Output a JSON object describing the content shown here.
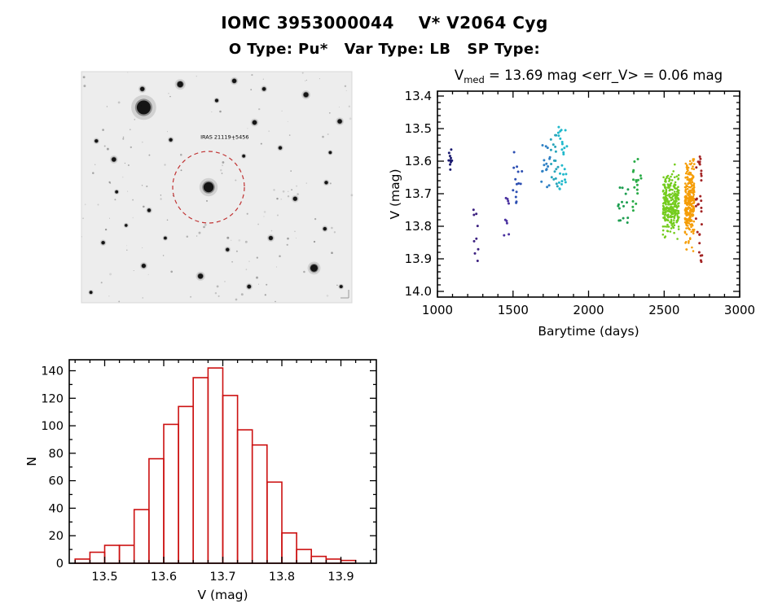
{
  "header": {
    "title": "IOMC 3953000044    V* V2064 Cyg",
    "subtitle": "O Type: Pu*   Var Type: LB   SP Type:"
  },
  "finding_chart": {
    "label": "IRAS 21119+5456",
    "background": "#ededed",
    "circle_color": "#c03333",
    "label_color": "#b53030",
    "seed": 7,
    "noise_count": 150,
    "stars": [
      [
        0.23,
        0.155,
        8.5
      ],
      [
        0.225,
        0.075,
        2.6
      ],
      [
        0.365,
        0.055,
        3.6
      ],
      [
        0.5,
        0.125,
        2.0
      ],
      [
        0.565,
        0.04,
        2.6
      ],
      [
        0.675,
        0.075,
        2.2
      ],
      [
        0.83,
        0.1,
        3.0
      ],
      [
        0.955,
        0.215,
        2.7
      ],
      [
        0.64,
        0.22,
        2.7
      ],
      [
        0.055,
        0.3,
        2.1
      ],
      [
        0.33,
        0.295,
        2.1
      ],
      [
        0.12,
        0.38,
        2.7
      ],
      [
        0.6,
        0.365,
        1.8
      ],
      [
        0.735,
        0.33,
        2.1
      ],
      [
        0.92,
        0.35,
        1.8
      ],
      [
        0.47,
        0.5,
        6.2
      ],
      [
        0.13,
        0.52,
        1.8
      ],
      [
        0.25,
        0.6,
        2.1
      ],
      [
        0.79,
        0.55,
        2.5
      ],
      [
        0.905,
        0.48,
        2.1
      ],
      [
        0.08,
        0.74,
        2.1
      ],
      [
        0.23,
        0.84,
        2.5
      ],
      [
        0.44,
        0.885,
        3.1
      ],
      [
        0.54,
        0.77,
        2.1
      ],
      [
        0.7,
        0.72,
        2.5
      ],
      [
        0.86,
        0.85,
        4.4
      ],
      [
        0.9,
        0.68,
        2.1
      ],
      [
        0.96,
        0.93,
        1.9
      ],
      [
        0.035,
        0.955,
        1.8
      ],
      [
        0.62,
        0.93,
        2.3
      ],
      [
        0.31,
        0.72,
        1.8
      ],
      [
        0.165,
        0.665,
        1.7
      ]
    ]
  },
  "chart_data": [
    {
      "type": "scatter",
      "name": "lightcurve",
      "title_v": "V",
      "title_sub": "med",
      "title_rest": " = 13.69 mag  <err_V> = 0.06 mag",
      "xlabel": "Barytime (days)",
      "ylabel": "V (mag)",
      "xlim": [
        1000,
        3000
      ],
      "ylim": [
        13.385,
        14.0175
      ],
      "y_inverted_magnitude_axis": true,
      "x_ticks": [
        {
          "v": 1000,
          "label": "1000"
        },
        {
          "v": 1500,
          "label": "1500"
        },
        {
          "v": 2000,
          "label": "2000"
        },
        {
          "v": 2500,
          "label": "2500"
        },
        {
          "v": 3000,
          "label": "3000"
        }
      ],
      "y_ticks": [
        {
          "v": 13.4,
          "label": "13.4"
        },
        {
          "v": 13.5,
          "label": "13.5"
        },
        {
          "v": 13.6,
          "label": "13.6"
        },
        {
          "v": 13.7,
          "label": "13.7"
        },
        {
          "v": 13.8,
          "label": "13.8"
        },
        {
          "v": 13.9,
          "label": "13.9"
        },
        {
          "v": 14.0,
          "label": "14.0"
        }
      ],
      "seed": 11,
      "clusters": [
        {
          "x0": 1072,
          "x1": 1100,
          "v0": 13.55,
          "v1": 13.64,
          "n": 10,
          "color": "#1b1b70",
          "dense": false
        },
        {
          "x0": 1225,
          "x1": 1280,
          "v0": 13.74,
          "v1": 13.91,
          "n": 9,
          "color": "#3c2080",
          "dense": false
        },
        {
          "x0": 1438,
          "x1": 1478,
          "v0": 13.71,
          "v1": 13.85,
          "n": 9,
          "color": "#4b32a0",
          "dense": false
        },
        {
          "x0": 1497,
          "x1": 1560,
          "v0": 13.55,
          "v1": 13.74,
          "n": 14,
          "color": "#2d4fb2",
          "dense": false
        },
        {
          "x0": 1688,
          "x1": 1746,
          "v0": 13.54,
          "v1": 13.68,
          "n": 16,
          "color": "#2f80c4",
          "dense": false
        },
        {
          "x0": 1748,
          "x1": 1798,
          "v0": 13.52,
          "v1": 13.68,
          "n": 18,
          "color": "#28a4ba",
          "dense": false
        },
        {
          "x0": 1800,
          "x1": 1858,
          "v0": 13.48,
          "v1": 13.73,
          "n": 26,
          "color": "#20b8cb",
          "dense": false
        },
        {
          "x0": 2195,
          "x1": 2262,
          "v0": 13.67,
          "v1": 13.79,
          "n": 15,
          "color": "#1d9e50",
          "dense": false
        },
        {
          "x0": 2288,
          "x1": 2348,
          "v0": 13.59,
          "v1": 13.77,
          "n": 18,
          "color": "#28ab46",
          "dense": false
        },
        {
          "x0": 2492,
          "x1": 2598,
          "v0": 13.58,
          "v1": 13.88,
          "n": 280,
          "color": "#74cc1e",
          "dense": true
        },
        {
          "x0": 2638,
          "x1": 2700,
          "v0": 13.52,
          "v1": 13.93,
          "n": 280,
          "color": "#f59d06",
          "dense": true
        },
        {
          "x0": 2705,
          "x1": 2752,
          "v0": 13.56,
          "v1": 13.91,
          "n": 32,
          "color": "#a32424",
          "dense": false
        }
      ]
    },
    {
      "type": "histogram",
      "name": "v-distribution",
      "xlabel": "V (mag)",
      "ylabel": "N",
      "xlim": [
        13.44,
        13.96
      ],
      "ylim": [
        0,
        148
      ],
      "bin_start": 13.45,
      "bin_width": 0.025,
      "values": [
        3,
        8,
        13,
        13,
        39,
        76,
        101,
        114,
        135,
        142,
        122,
        97,
        86,
        59,
        22,
        10,
        5,
        3,
        2
      ],
      "x_ticks": [
        {
          "v": 13.5,
          "label": "13.5"
        },
        {
          "v": 13.6,
          "label": "13.6"
        },
        {
          "v": 13.7,
          "label": "13.7"
        },
        {
          "v": 13.8,
          "label": "13.8"
        },
        {
          "v": 13.9,
          "label": "13.9"
        }
      ],
      "y_ticks": [
        {
          "v": 0,
          "label": "0"
        },
        {
          "v": 20,
          "label": "20"
        },
        {
          "v": 40,
          "label": "40"
        },
        {
          "v": 60,
          "label": "60"
        },
        {
          "v": 80,
          "label": "80"
        },
        {
          "v": 100,
          "label": "100"
        },
        {
          "v": 120,
          "label": "120"
        },
        {
          "v": 140,
          "label": "140"
        }
      ],
      "color": "#cc1111"
    }
  ]
}
